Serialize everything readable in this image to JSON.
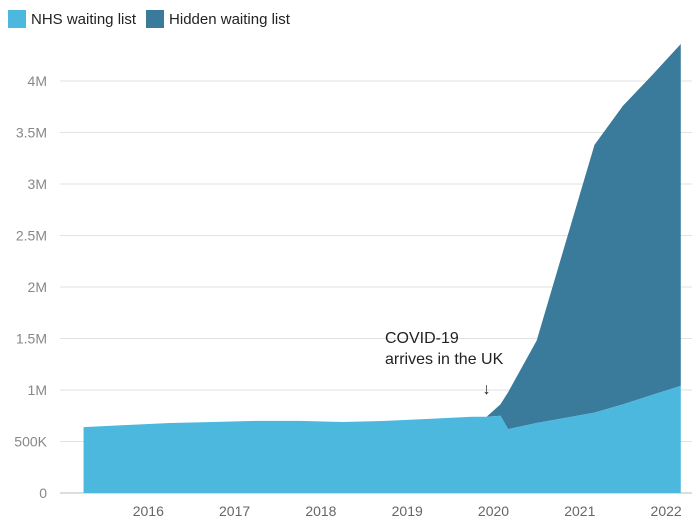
{
  "chart_data": {
    "type": "area",
    "stacked": true,
    "x": [
      2015.25,
      2015.75,
      2016.25,
      2016.75,
      2017.25,
      2017.75,
      2018.25,
      2018.75,
      2019.25,
      2019.75,
      2019.92,
      2020.08,
      2020.17,
      2020.5,
      2021.17,
      2021.5,
      2021.83,
      2022.17
    ],
    "series": [
      {
        "name": "NHS waiting list",
        "color": "#4db8de",
        "values": [
          640000,
          660000,
          680000,
          690000,
          700000,
          700000,
          690000,
          700000,
          720000,
          740000,
          740000,
          750000,
          620000,
          680000,
          780000,
          860000,
          950000,
          1040000
        ]
      },
      {
        "name": "Hidden waiting list",
        "color": "#3a7a9b",
        "values": [
          0,
          0,
          0,
          0,
          0,
          0,
          0,
          0,
          0,
          0,
          0,
          110000,
          360000,
          800000,
          2600000,
          2900000,
          3100000,
          3320000
        ]
      }
    ],
    "xticks": [
      "2016",
      "2017",
      "2018",
      "2019",
      "2020",
      "2021",
      "2022"
    ],
    "xtick_values": [
      2016,
      2017,
      2018,
      2019,
      2020,
      2021,
      2022
    ],
    "yticks": [
      "0",
      "500K",
      "1M",
      "1.5M",
      "2M",
      "2.5M",
      "3M",
      "3.5M",
      "4M"
    ],
    "ytick_values": [
      0,
      500000,
      1000000,
      1500000,
      2000000,
      2500000,
      3000000,
      3500000,
      4000000
    ],
    "ylim": [
      0,
      4350000
    ],
    "xlim": [
      2015.0,
      2022.3
    ],
    "grid": true,
    "legend_position": "top-left",
    "annotation": {
      "lines": [
        "COVID-19",
        "arrives in the UK"
      ],
      "arrow": "↓",
      "x": 2019.92
    }
  }
}
